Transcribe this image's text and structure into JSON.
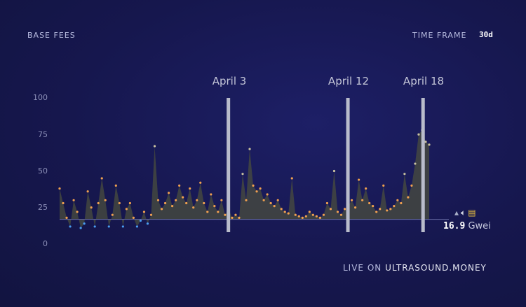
{
  "header": {
    "title": "BASE FEES",
    "time_frame_label": "TIME FRAME",
    "time_frame_value": "30d"
  },
  "current": {
    "value": "16.9",
    "unit": "Gwei",
    "icons": [
      "bat-icon",
      "speaker-icon",
      "barrier-icon"
    ]
  },
  "footer": {
    "prefix": "LIVE ON",
    "site": "ULTRASOUND.MONEY"
  },
  "colors": {
    "accent": "#f0a050",
    "below": "#4a9cf0",
    "marker": "#b9bccb"
  },
  "chart_data": {
    "type": "area",
    "title": "BASE FEES",
    "ylabel": "Gwei",
    "ylim": [
      0,
      100
    ],
    "yticks": [
      "0",
      "25",
      "50",
      "75",
      "100"
    ],
    "baseline": 16.9,
    "x_days": 30,
    "markers": [
      {
        "label": "April 3",
        "day": 13.7
      },
      {
        "label": "April 12",
        "day": 23.4
      },
      {
        "label": "April 18",
        "day": 29.5
      }
    ],
    "values": [
      38,
      28,
      18,
      12,
      30,
      22,
      11,
      14,
      36,
      25,
      12,
      28,
      45,
      30,
      12,
      20,
      40,
      28,
      12,
      24,
      28,
      18,
      12,
      16,
      22,
      14,
      20,
      67,
      30,
      24,
      28,
      35,
      26,
      30,
      40,
      32,
      28,
      38,
      25,
      30,
      42,
      28,
      22,
      34,
      26,
      22,
      30,
      20,
      24,
      18,
      20,
      18,
      48,
      30,
      65,
      40,
      36,
      38,
      30,
      34,
      28,
      26,
      30,
      24,
      22,
      21,
      45,
      20,
      19,
      18,
      19,
      22,
      20,
      19,
      18,
      20,
      28,
      24,
      50,
      22,
      20,
      24,
      26,
      30,
      25,
      44,
      30,
      38,
      28,
      26,
      22,
      24,
      40,
      23,
      24,
      26,
      30,
      28,
      48,
      32,
      40,
      55,
      75,
      78,
      70,
      68
    ]
  }
}
